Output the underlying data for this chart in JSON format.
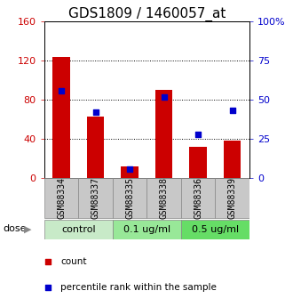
{
  "title": "GDS1809 / 1460057_at",
  "samples": [
    "GSM88334",
    "GSM88337",
    "GSM88335",
    "GSM88338",
    "GSM88336",
    "GSM88339"
  ],
  "counts": [
    124,
    63,
    12,
    90,
    32,
    38
  ],
  "percentiles": [
    56,
    42,
    6,
    52,
    28,
    43
  ],
  "group_configs": [
    {
      "label": "control",
      "start": 0,
      "end": 2,
      "color": "#c8eac8"
    },
    {
      "label": "0.1 ug/ml",
      "start": 2,
      "end": 4,
      "color": "#98e898"
    },
    {
      "label": "0.5 ug/ml",
      "start": 4,
      "end": 6,
      "color": "#66dd66"
    }
  ],
  "ylim_left": [
    0,
    160
  ],
  "ylim_right": [
    0,
    100
  ],
  "yticks_left": [
    0,
    40,
    80,
    120,
    160
  ],
  "yticks_right": [
    0,
    25,
    50,
    75,
    100
  ],
  "yticklabels_right": [
    "0",
    "25",
    "50",
    "75",
    "100%"
  ],
  "bar_color": "#cc0000",
  "dot_color": "#0000cc",
  "title_fontsize": 11,
  "tick_label_fontsize": 8,
  "sample_label_fontsize": 7,
  "group_label_fontsize": 8,
  "legend_fontsize": 7.5,
  "dose_fontsize": 8,
  "sample_box_color": "#c8c8c8",
  "bar_width": 0.5
}
